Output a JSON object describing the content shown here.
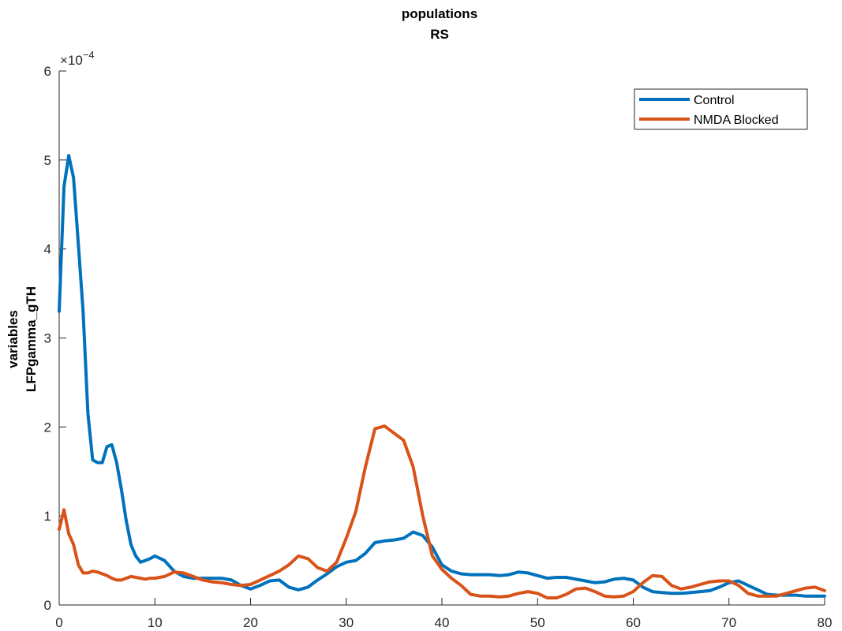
{
  "chart_data": {
    "type": "line",
    "title": [
      "populations",
      "RS"
    ],
    "ylabel": [
      "variables",
      "LFPgamma_gTH"
    ],
    "xlabel": "",
    "xlim": [
      0,
      80
    ],
    "ylim": [
      0,
      6
    ],
    "y_exponent_label": "×10",
    "y_exponent_power": "−4",
    "xticks": [
      "0",
      "10",
      "20",
      "30",
      "40",
      "50",
      "60",
      "70",
      "80"
    ],
    "yticks": [
      "0",
      "1",
      "2",
      "3",
      "4",
      "5",
      "6"
    ],
    "legend_position": "top-right",
    "grid": false,
    "series": [
      {
        "name": "Control",
        "color": "#0072BD",
        "x": [
          0,
          0.5,
          1,
          1.5,
          2,
          2.5,
          3,
          3.5,
          4,
          4.5,
          5,
          5.5,
          6,
          6.5,
          7,
          7.5,
          8,
          8.5,
          9,
          9.5,
          10,
          11,
          12,
          13,
          14,
          15,
          16,
          17,
          18,
          19,
          20,
          21,
          22,
          23,
          24,
          25,
          26,
          27,
          28,
          29,
          30,
          31,
          32,
          33,
          34,
          35,
          36,
          37,
          38,
          39,
          40,
          41,
          42,
          43,
          44,
          45,
          46,
          47,
          48,
          49,
          50,
          51,
          52,
          53,
          54,
          55,
          56,
          57,
          58,
          59,
          60,
          61,
          62,
          63,
          64,
          65,
          66,
          67,
          68,
          69,
          70,
          71,
          72,
          73,
          74,
          75,
          76,
          77,
          78,
          79,
          80
        ],
        "values": [
          3.3,
          4.7,
          5.05,
          4.8,
          4.05,
          3.3,
          2.15,
          1.63,
          1.6,
          1.6,
          1.78,
          1.8,
          1.6,
          1.3,
          0.95,
          0.68,
          0.55,
          0.48,
          0.5,
          0.52,
          0.55,
          0.5,
          0.38,
          0.32,
          0.3,
          0.3,
          0.3,
          0.3,
          0.28,
          0.22,
          0.18,
          0.22,
          0.27,
          0.28,
          0.2,
          0.17,
          0.2,
          0.28,
          0.35,
          0.43,
          0.48,
          0.5,
          0.58,
          0.7,
          0.72,
          0.73,
          0.75,
          0.82,
          0.78,
          0.65,
          0.45,
          0.38,
          0.35,
          0.34,
          0.34,
          0.34,
          0.33,
          0.34,
          0.37,
          0.36,
          0.33,
          0.3,
          0.31,
          0.31,
          0.29,
          0.27,
          0.25,
          0.26,
          0.29,
          0.3,
          0.28,
          0.2,
          0.15,
          0.14,
          0.13,
          0.13,
          0.14,
          0.15,
          0.16,
          0.2,
          0.25,
          0.27,
          0.22,
          0.17,
          0.12,
          0.11,
          0.11,
          0.11,
          0.1,
          0.1,
          0.1
        ]
      },
      {
        "name": "NMDA Blocked",
        "color": "#D95319",
        "x": [
          0,
          0.5,
          1,
          1.5,
          2,
          2.5,
          3,
          3.5,
          4,
          4.5,
          5,
          5.5,
          6,
          6.5,
          7,
          7.5,
          8,
          8.5,
          9,
          9.5,
          10,
          11,
          12,
          13,
          14,
          15,
          16,
          17,
          18,
          19,
          20,
          21,
          22,
          23,
          24,
          25,
          26,
          27,
          28,
          29,
          30,
          31,
          32,
          33,
          34,
          35,
          36,
          37,
          38,
          39,
          40,
          41,
          42,
          43,
          44,
          45,
          46,
          47,
          48,
          49,
          50,
          51,
          52,
          53,
          54,
          55,
          56,
          57,
          58,
          59,
          60,
          61,
          62,
          63,
          64,
          65,
          66,
          67,
          68,
          69,
          70,
          71,
          72,
          73,
          74,
          75,
          76,
          77,
          78,
          79,
          80
        ],
        "values": [
          0.85,
          1.07,
          0.8,
          0.68,
          0.45,
          0.36,
          0.36,
          0.38,
          0.37,
          0.35,
          0.33,
          0.3,
          0.28,
          0.28,
          0.3,
          0.32,
          0.31,
          0.3,
          0.29,
          0.3,
          0.3,
          0.32,
          0.37,
          0.36,
          0.32,
          0.28,
          0.26,
          0.25,
          0.23,
          0.22,
          0.23,
          0.28,
          0.33,
          0.38,
          0.45,
          0.55,
          0.52,
          0.42,
          0.38,
          0.48,
          0.75,
          1.05,
          1.55,
          1.98,
          2.01,
          1.93,
          1.85,
          1.55,
          1.0,
          0.55,
          0.4,
          0.3,
          0.22,
          0.12,
          0.1,
          0.1,
          0.09,
          0.1,
          0.13,
          0.15,
          0.13,
          0.08,
          0.08,
          0.12,
          0.18,
          0.19,
          0.15,
          0.1,
          0.09,
          0.1,
          0.15,
          0.25,
          0.33,
          0.32,
          0.22,
          0.18,
          0.2,
          0.23,
          0.26,
          0.27,
          0.27,
          0.22,
          0.13,
          0.1,
          0.1,
          0.1,
          0.13,
          0.16,
          0.19,
          0.2,
          0.16
        ]
      }
    ]
  }
}
